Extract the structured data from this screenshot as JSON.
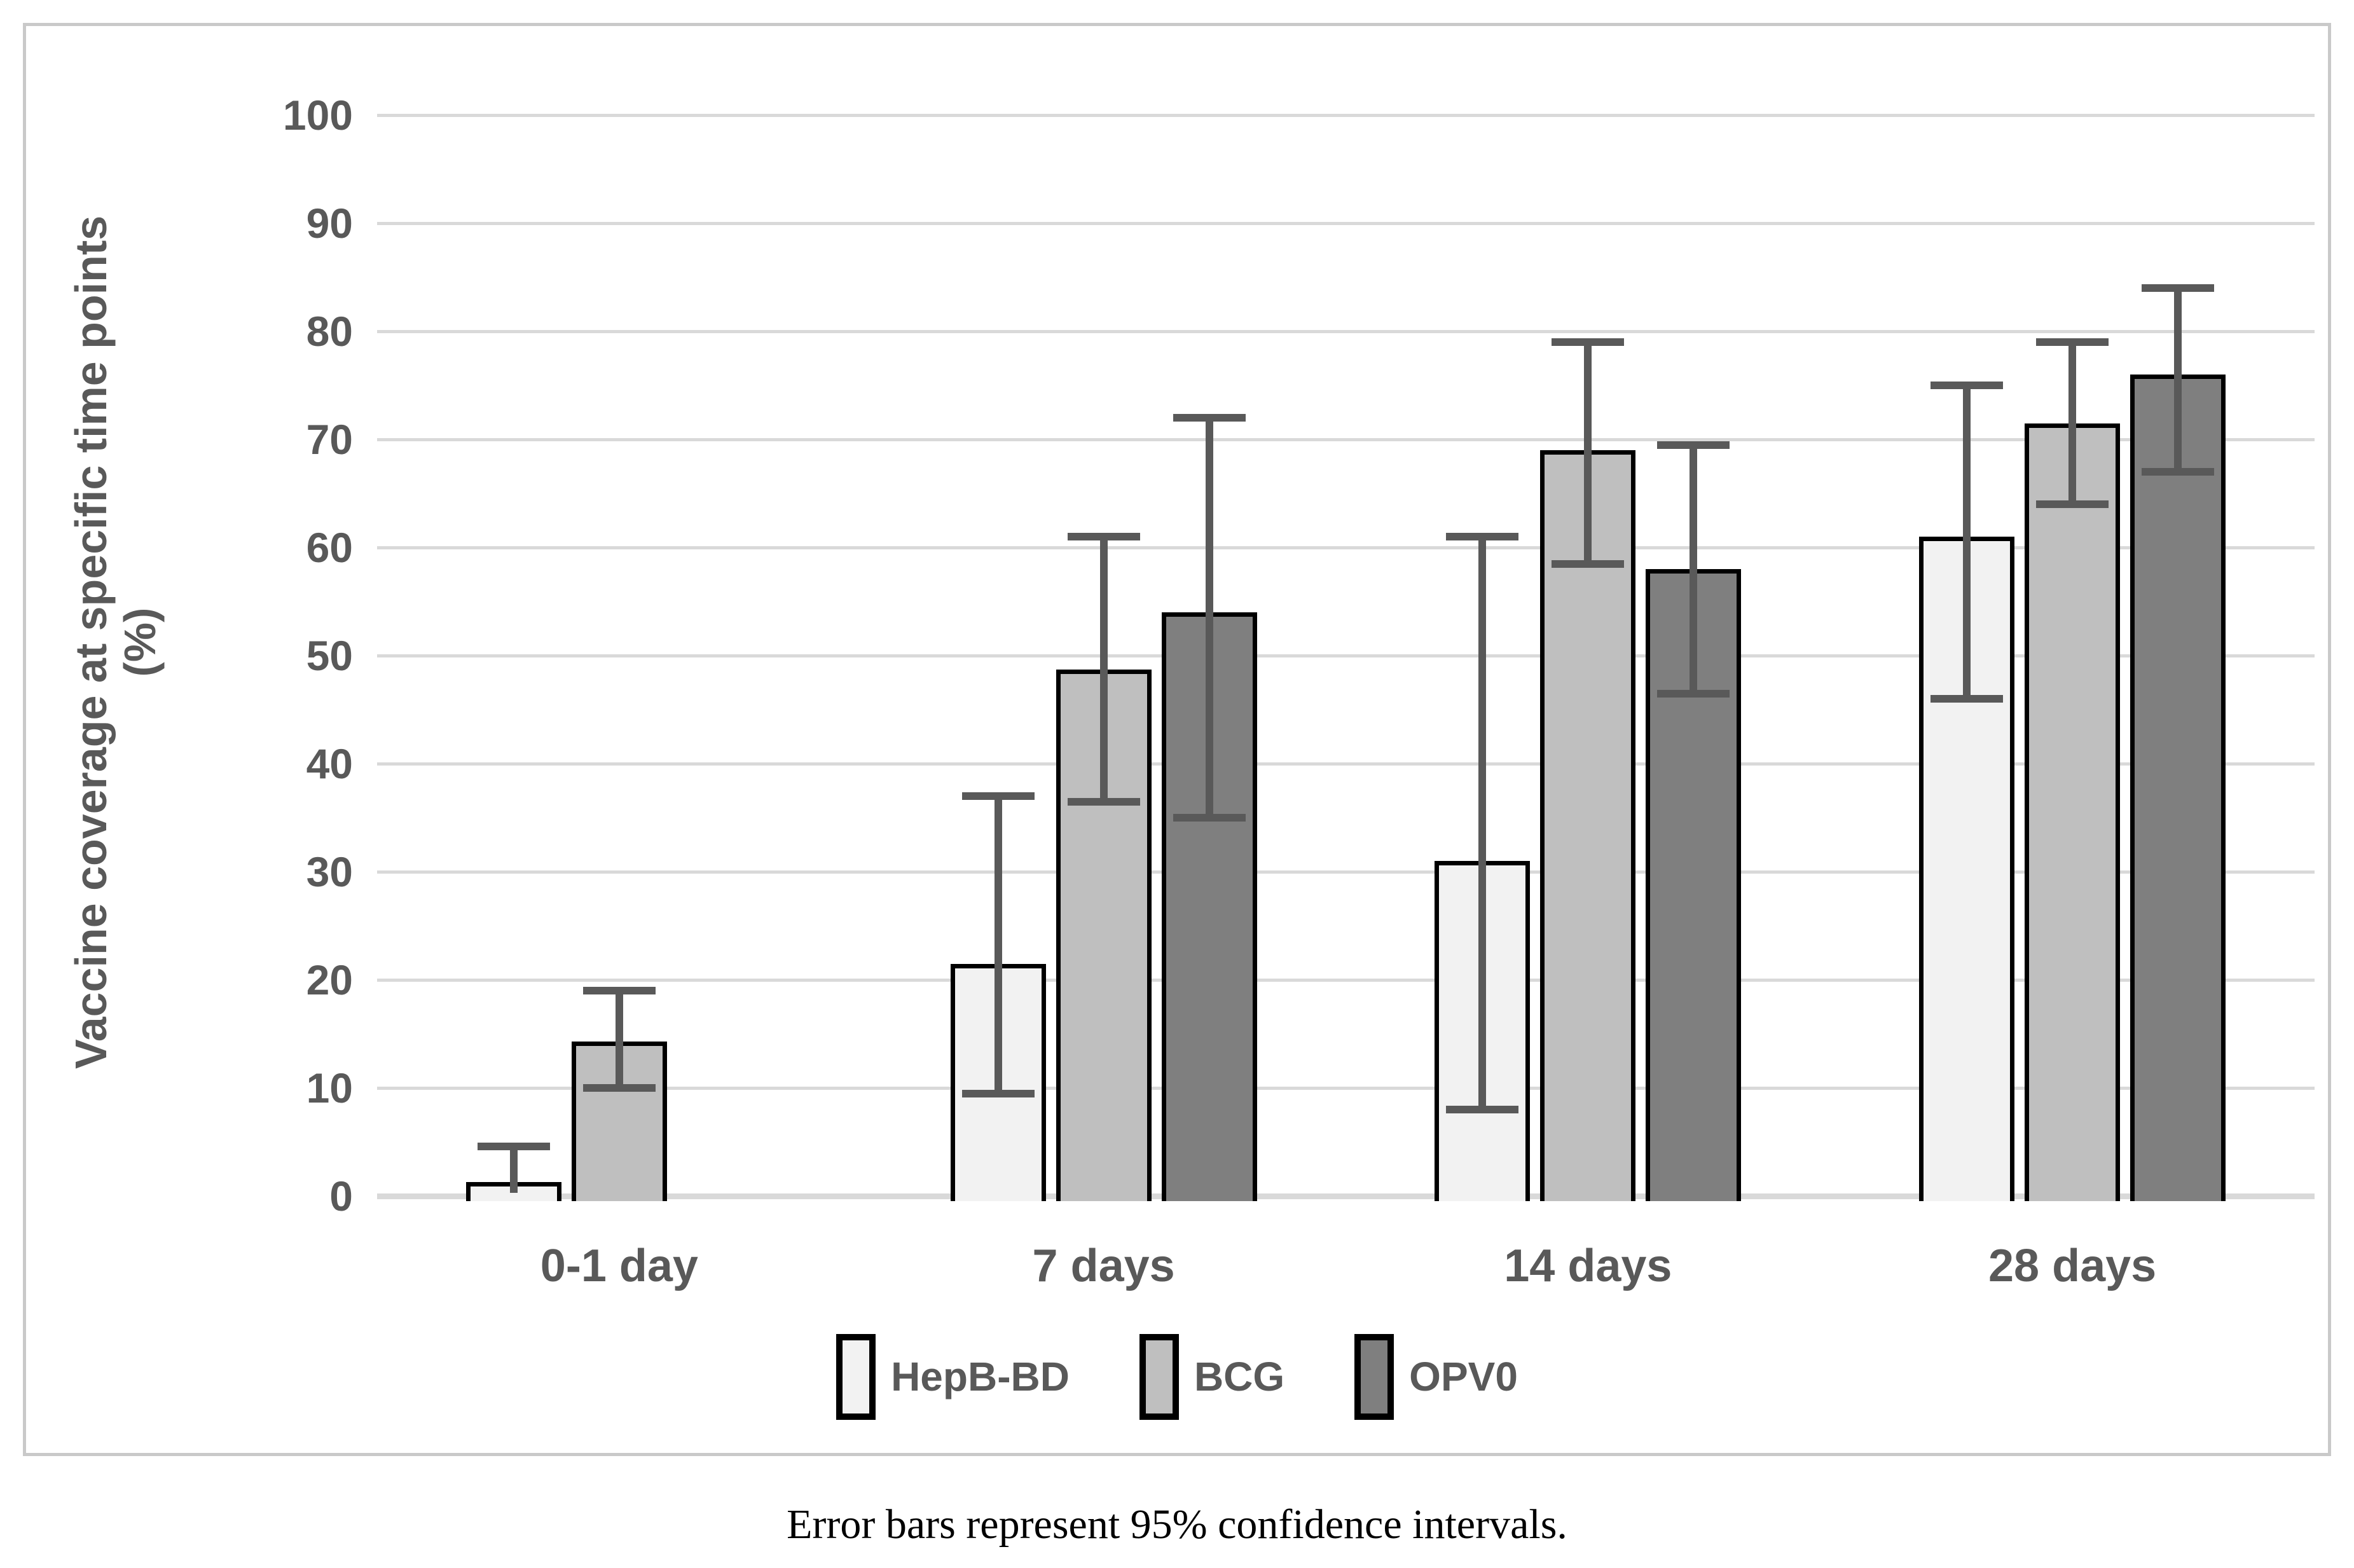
{
  "figure": {
    "caption": "Error bars represent 95% confidence intervals."
  },
  "colors": {
    "hepb_fill": "#f2f2f2",
    "bcg_fill": "#bfbfbf",
    "opv0_fill": "#7f7f7f",
    "bar_border": "#000000",
    "error_bar": "#595959",
    "gridline": "#d9d9d9",
    "axis_text": "#595959",
    "figure_border": "#c9c9c9"
  },
  "chart_data": {
    "type": "bar",
    "title": "",
    "xlabel": "",
    "ylabel": "Vaccine coverage at specific time points",
    "ylabel_unit_line": "(%)",
    "ylim": [
      0,
      100
    ],
    "ytick_step": 10,
    "yticks": [
      0,
      10,
      20,
      30,
      40,
      50,
      60,
      70,
      80,
      90,
      100
    ],
    "grid": true,
    "legend_position": "bottom",
    "error_note": "Error bars represent 95% confidence intervals.",
    "categories": [
      "0-1 day",
      "7 days",
      "14 days",
      "28 days"
    ],
    "series": [
      {
        "name": "HepB-BD",
        "color": "#f2f2f2",
        "values": [
          1.3,
          21.5,
          31,
          61
        ],
        "ci_low": [
          0.3,
          9.5,
          8,
          46
        ],
        "ci_high": [
          4.6,
          37,
          61,
          75
        ],
        "show_low_cap": [
          false,
          true,
          true,
          true
        ]
      },
      {
        "name": "BCG",
        "color": "#bfbfbf",
        "values": [
          14.3,
          48.7,
          69,
          71.5
        ],
        "ci_low": [
          10,
          36.5,
          58.5,
          64
        ],
        "ci_high": [
          19,
          61,
          79,
          79
        ],
        "show_low_cap": [
          true,
          true,
          true,
          true
        ]
      },
      {
        "name": "OPV0",
        "color": "#7f7f7f",
        "values": [
          null,
          54,
          58,
          76
        ],
        "ci_low": [
          null,
          35,
          46.5,
          67
        ],
        "ci_high": [
          null,
          72,
          69.5,
          84
        ],
        "show_low_cap": [
          true,
          true,
          true,
          true
        ]
      }
    ]
  }
}
